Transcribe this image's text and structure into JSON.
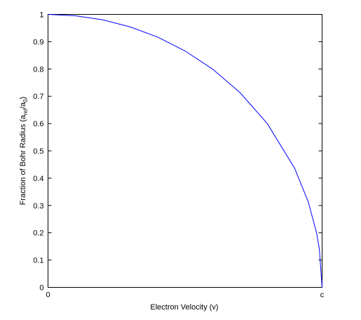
{
  "chart_data": {
    "type": "line",
    "xlabel": "Electron Velocity (v)",
    "ylabel": [
      "Fraction of Bohr Radius (a",
      "rel",
      "/a",
      "0",
      ")"
    ],
    "x": [
      0,
      0.1,
      0.2,
      0.3,
      0.4,
      0.5,
      0.6,
      0.7,
      0.8,
      0.9,
      0.95,
      0.98,
      0.99,
      1
    ],
    "series": [
      {
        "color": "#0000ff",
        "values": [
          1,
          0.995,
          0.98,
          0.954,
          0.917,
          0.866,
          0.8,
          0.714,
          0.6,
          0.436,
          0.312,
          0.199,
          0.141,
          0
        ]
      }
    ],
    "xlim": [
      0,
      1
    ],
    "xticks": [
      {
        "value": 0,
        "label": "0"
      },
      {
        "value": 1,
        "label": "c"
      }
    ],
    "ylim": [
      0,
      1
    ],
    "yticks": [
      0,
      0.1,
      0.2,
      0.3,
      0.4,
      0.5,
      0.6,
      0.7,
      0.8,
      0.9,
      1
    ],
    "grid": false
  }
}
